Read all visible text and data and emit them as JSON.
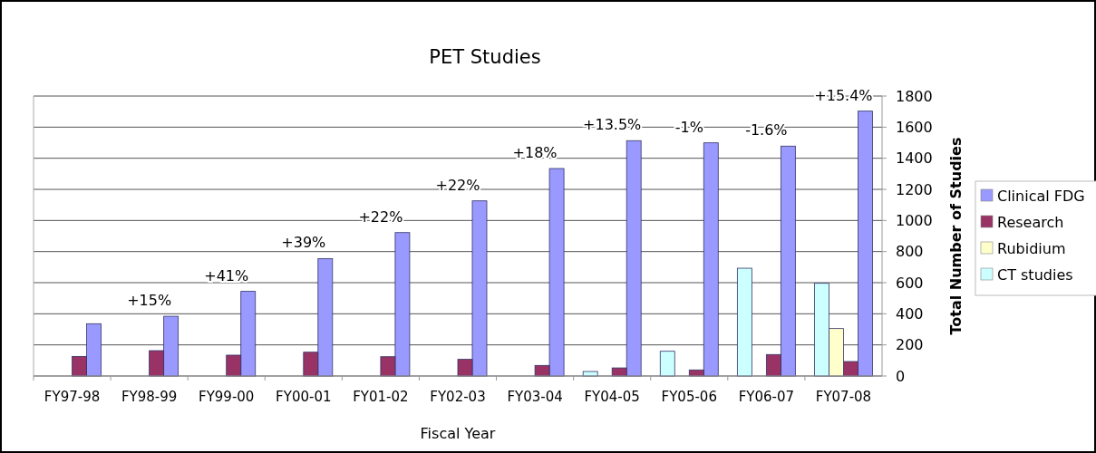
{
  "chart_data": {
    "type": "bar",
    "title": "PET Studies",
    "xlabel": "Fiscal Year",
    "ylabel": "Total Number of Studies",
    "categories": [
      "FY97-98",
      "FY98-99",
      "FY99-00",
      "FY00-01",
      "FY01-02",
      "FY02-03",
      "FY03-04",
      "FY04-05",
      "FY05-06",
      "FY06-07",
      "FY07-08"
    ],
    "series": [
      {
        "name": "Clinical FDG",
        "color": "#9999ff",
        "values": [
          336,
          384,
          544,
          755,
          922,
          1126,
          1334,
          1513,
          1499,
          1478,
          1703
        ]
      },
      {
        "name": "Research",
        "color": "#993366",
        "values": [
          126,
          163,
          134,
          153,
          124,
          107,
          68,
          52,
          39,
          138,
          93
        ]
      },
      {
        "name": "Rubidium",
        "color": "#ffffcc",
        "values": [
          null,
          null,
          null,
          null,
          null,
          null,
          null,
          null,
          null,
          null,
          305
        ]
      },
      {
        "name": "CT studies",
        "color": "#ccffff",
        "values": [
          null,
          null,
          null,
          null,
          null,
          null,
          null,
          29,
          159,
          693,
          596
        ]
      }
    ],
    "ylim": [
      0,
      1800
    ],
    "yticks": [
      0,
      200,
      400,
      600,
      800,
      1000,
      1200,
      1400,
      1600,
      1800
    ],
    "grid": "y",
    "legend": "right",
    "annotations": [
      "+15%",
      "+41%",
      "+39%",
      "+22%",
      "+22%",
      "+18%",
      "+13.5%",
      "-1%",
      "-1.6%",
      "+15.4%"
    ]
  }
}
